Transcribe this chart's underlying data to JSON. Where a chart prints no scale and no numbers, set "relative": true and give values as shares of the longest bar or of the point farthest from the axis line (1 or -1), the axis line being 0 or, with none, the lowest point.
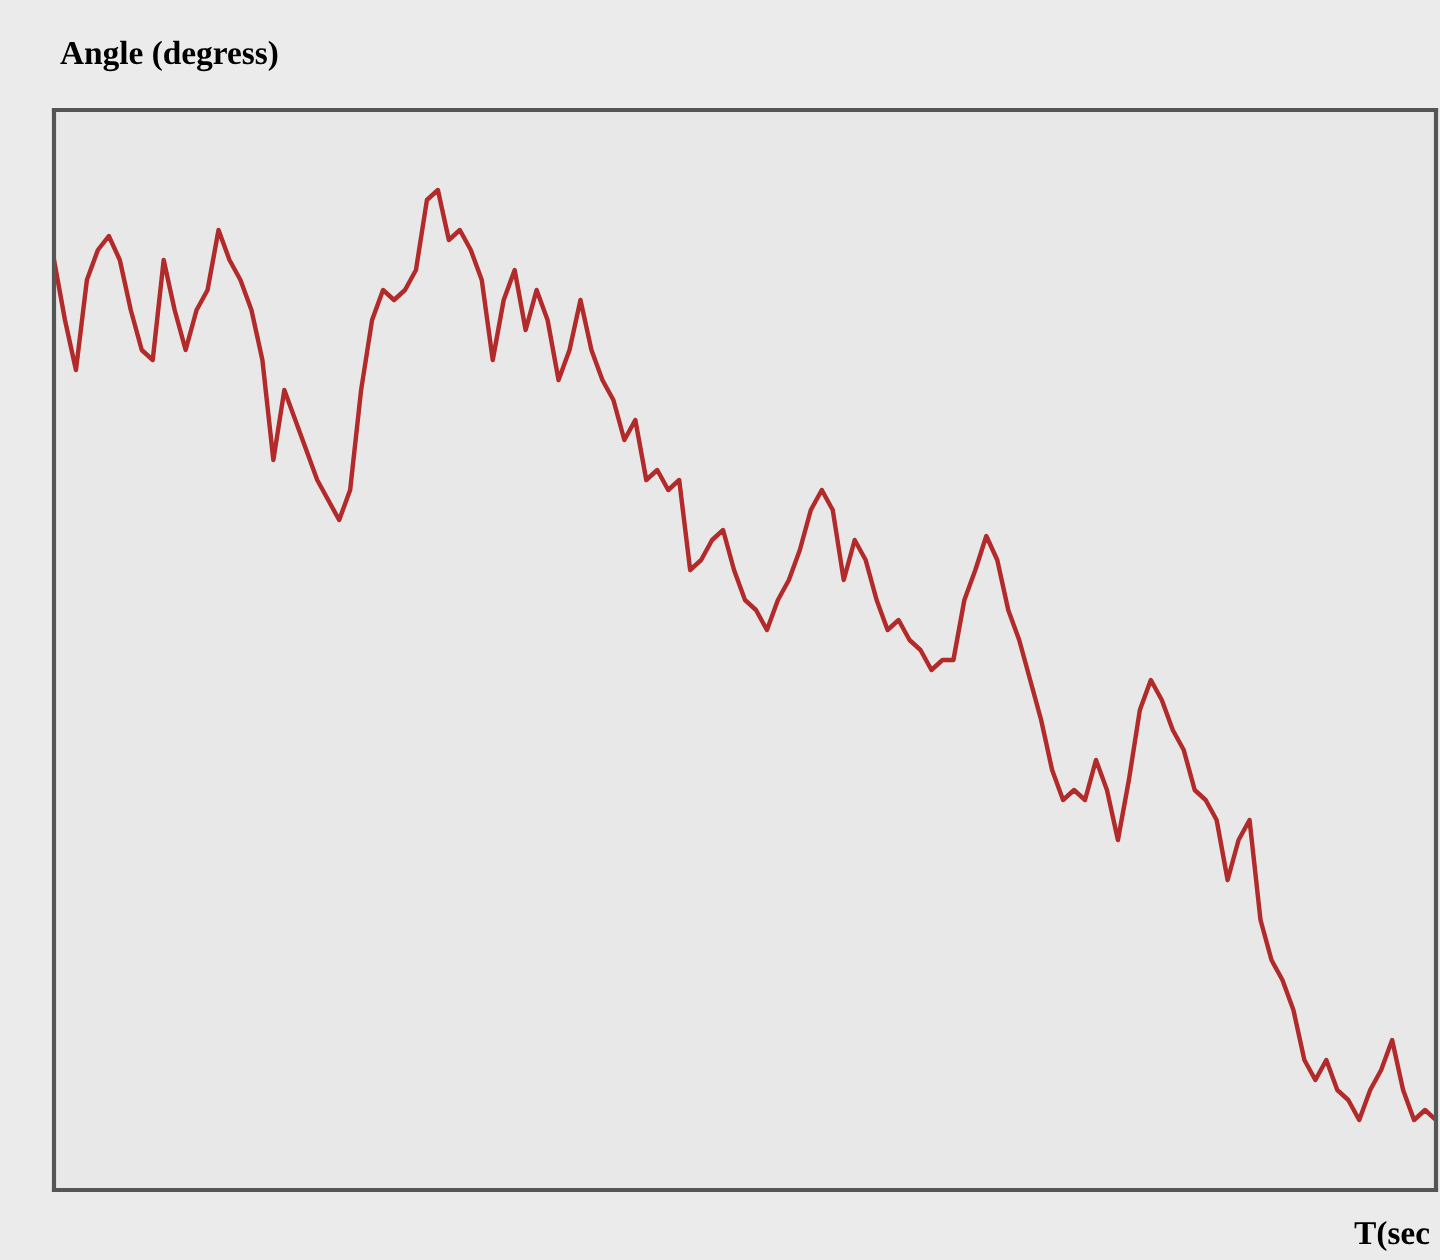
{
  "chart_data": {
    "type": "line",
    "relative": true,
    "ylabel": "Angle (degress)",
    "xlabel": "T(sec",
    "categories": [
      null,
      null,
      null,
      null,
      null,
      null,
      null,
      null,
      null,
      null,
      null,
      null,
      null,
      null,
      null,
      null,
      null,
      null,
      null,
      null,
      null,
      null,
      null,
      null,
      null,
      null,
      null,
      null,
      null,
      null,
      null,
      null,
      null,
      null,
      null,
      null,
      null,
      null,
      null,
      null,
      null,
      null,
      null,
      null,
      null,
      null,
      null,
      null,
      null,
      null,
      null,
      null,
      null,
      null,
      null,
      null,
      null,
      null,
      null,
      null,
      null,
      null,
      null,
      null,
      null,
      null,
      null,
      null,
      null,
      null,
      null,
      null,
      null,
      null,
      null,
      null,
      null,
      null,
      null,
      null,
      null,
      null,
      null,
      null,
      null,
      null,
      null,
      null,
      null,
      null,
      null,
      null,
      null,
      null,
      null,
      null,
      null,
      null,
      null,
      null,
      null,
      null,
      null,
      null,
      null,
      null,
      null,
      null,
      null,
      null,
      null,
      null,
      null,
      null,
      null,
      null,
      null,
      null,
      null,
      null,
      null,
      null,
      null,
      null,
      null,
      null,
      null
    ],
    "series": [
      {
        "color": "#b22a2a",
        "values": [
          0.93,
          0.87,
          0.82,
          0.91,
          0.94,
          0.954,
          0.93,
          0.88,
          0.84,
          0.83,
          0.93,
          0.88,
          0.84,
          0.88,
          0.9,
          0.96,
          0.93,
          0.91,
          0.88,
          0.83,
          0.73,
          0.8,
          0.77,
          0.74,
          0.71,
          0.69,
          0.67,
          0.7,
          0.8,
          0.87,
          0.9,
          0.89,
          0.9,
          0.92,
          0.99,
          1,
          0.95,
          0.96,
          0.94,
          0.91,
          0.83,
          0.89,
          0.92,
          0.86,
          0.9,
          0.87,
          0.81,
          0.84,
          0.89,
          0.84,
          0.81,
          0.79,
          0.75,
          0.77,
          0.71,
          0.72,
          0.7,
          0.71,
          0.62,
          0.63,
          0.65,
          0.66,
          0.62,
          0.59,
          0.58,
          0.56,
          0.59,
          0.61,
          0.64,
          0.68,
          0.7,
          0.68,
          0.61,
          0.65,
          0.63,
          0.59,
          0.56,
          0.57,
          0.55,
          0.54,
          0.52,
          0.53,
          0.53,
          0.59,
          0.62,
          0.654,
          0.63,
          0.58,
          0.55,
          0.51,
          0.47,
          0.42,
          0.39,
          0.4,
          0.39,
          0.43,
          0.4,
          0.35,
          0.41,
          0.48,
          0.51,
          0.49,
          0.46,
          0.44,
          0.4,
          0.39,
          0.37,
          0.31,
          0.35,
          0.37,
          0.27,
          0.23,
          0.21,
          0.18,
          0.13,
          0.11,
          0.13,
          0.1,
          0.09,
          0.07,
          0.1,
          0.12,
          0.15,
          0.1,
          0.07,
          0.08,
          0.07
        ]
      }
    ],
    "grid": false,
    "legend": false
  }
}
